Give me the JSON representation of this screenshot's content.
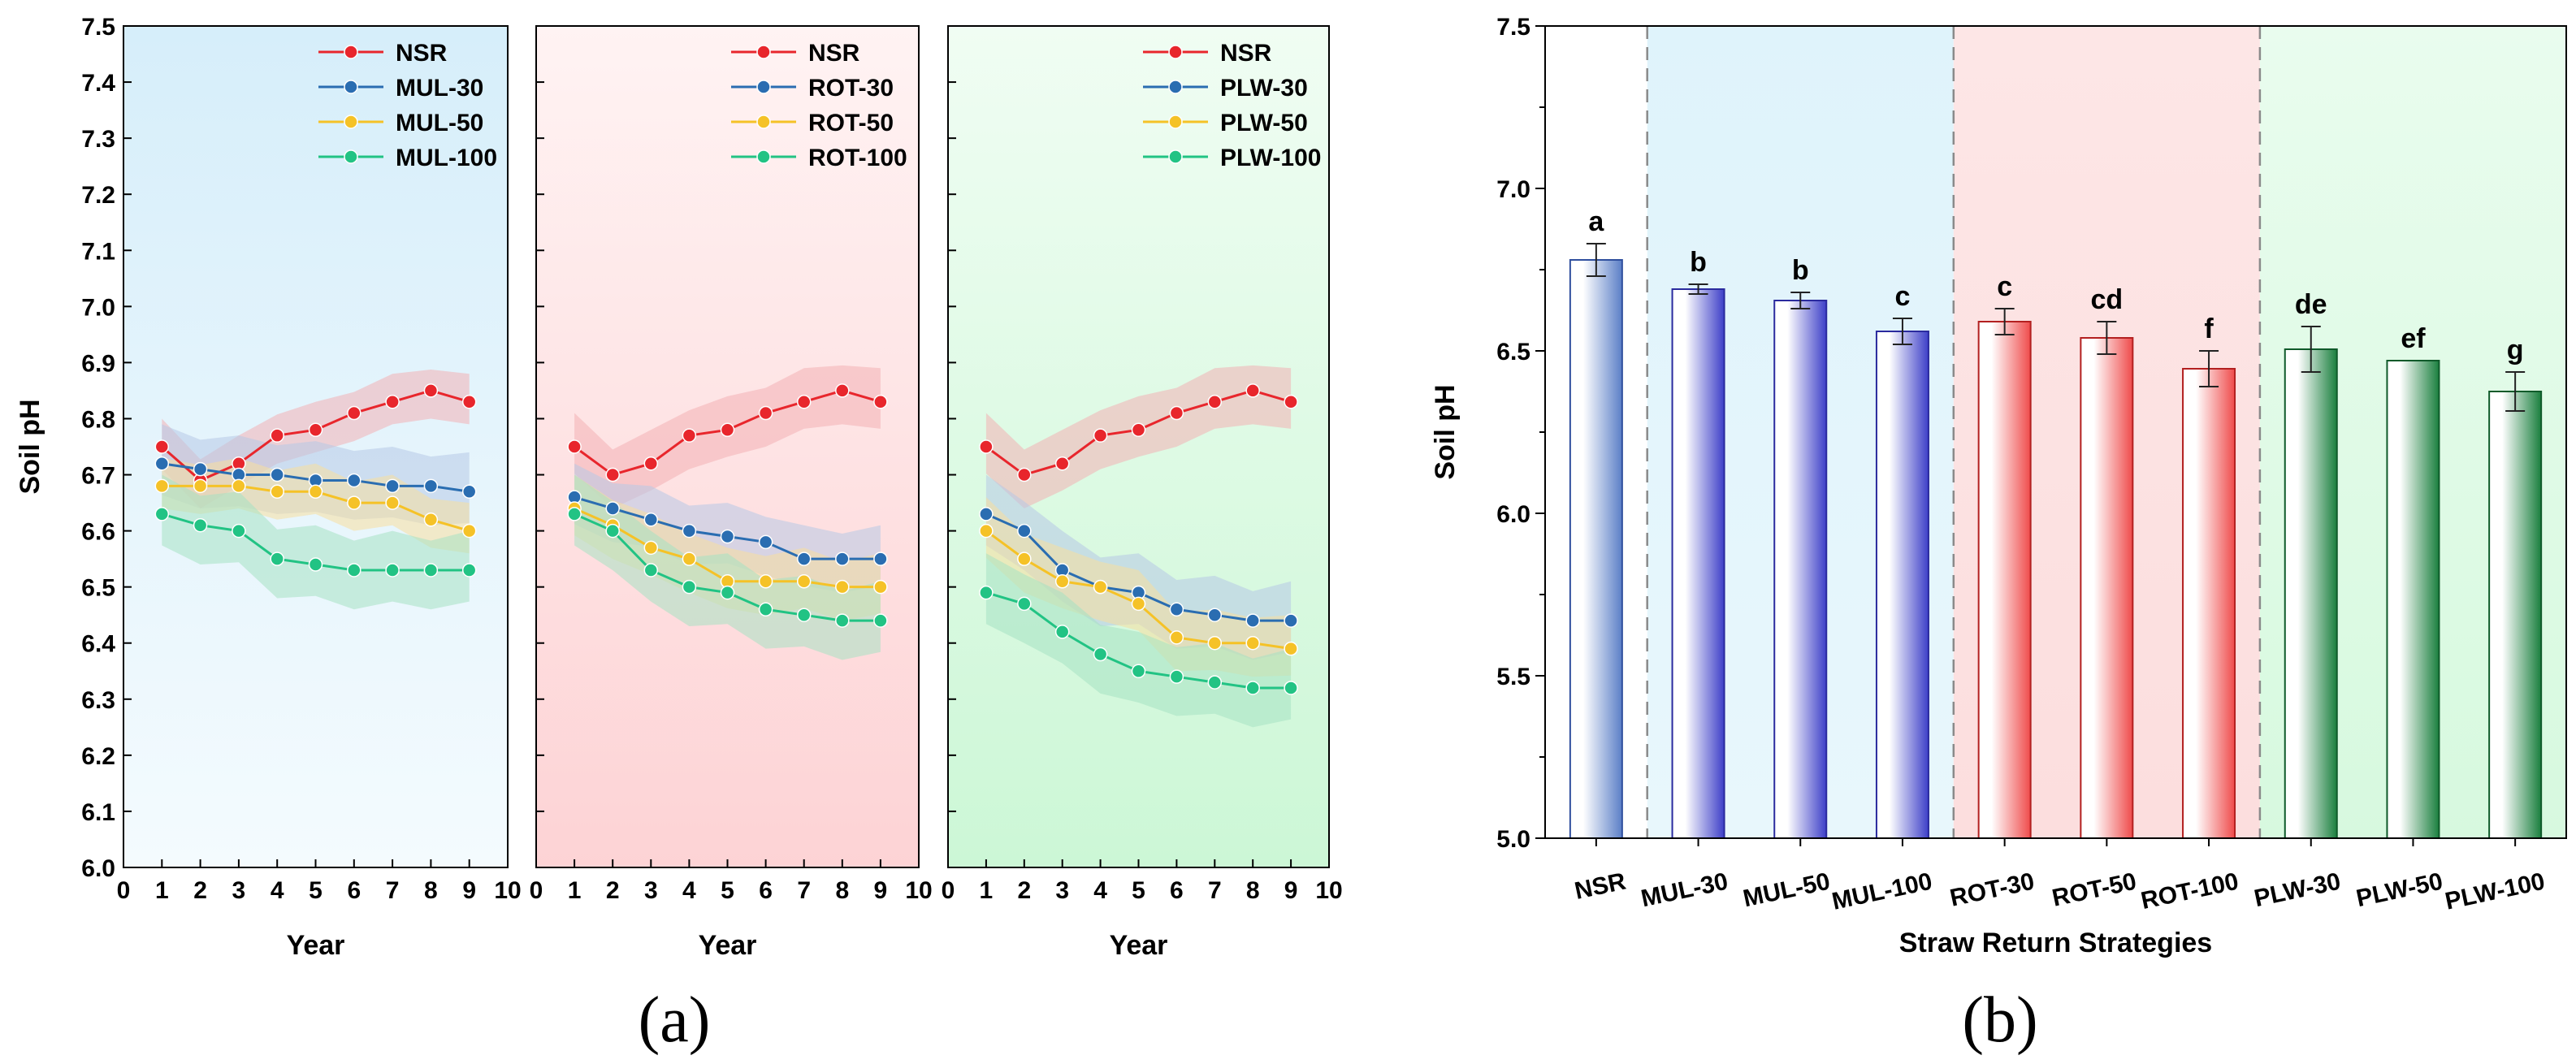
{
  "figure": {
    "panel_a_label": "(a)",
    "panel_b_label": "(b)"
  },
  "colors": {
    "NSR": "#e8262c",
    "L30": "#2a6db1",
    "L50": "#f5c227",
    "L100": "#22c384",
    "bg_mul": "#e3f3fb",
    "bg_rot": "#fde3e3",
    "bg_plw": "#dcfbe3",
    "band_nsr": "#f3b1b5",
    "band_30": "#b7c9e5",
    "band_50": "#f7df9e",
    "band_100": "#a6e2c2",
    "bar_nsr": "#5b7fc7",
    "bar_mul": "#3d3fc8",
    "bar_rot": "#ef4b4b",
    "bar_plw": "#1a7f3e"
  },
  "chart_data": [
    {
      "type": "line",
      "title": "",
      "xlabel": "Year",
      "ylabel": "Soil pH",
      "xlim": [
        0,
        10
      ],
      "ylim": [
        6.0,
        7.5
      ],
      "x": [
        1,
        2,
        3,
        4,
        5,
        6,
        7,
        8,
        9
      ],
      "legend_position": "top-right",
      "series": [
        {
          "name": "NSR",
          "values": [
            6.75,
            6.69,
            6.72,
            6.77,
            6.78,
            6.81,
            6.83,
            6.85,
            6.83
          ],
          "band": 0.05
        },
        {
          "name": "MUL-30",
          "values": [
            6.72,
            6.71,
            6.7,
            6.7,
            6.69,
            6.69,
            6.68,
            6.68,
            6.67
          ],
          "band": 0.07
        },
        {
          "name": "MUL-50",
          "values": [
            6.68,
            6.68,
            6.68,
            6.67,
            6.67,
            6.65,
            6.65,
            6.62,
            6.6
          ],
          "band": 0.05
        },
        {
          "name": "MUL-100",
          "values": [
            6.63,
            6.61,
            6.6,
            6.55,
            6.54,
            6.53,
            6.53,
            6.53,
            6.53
          ],
          "band": 0.07
        }
      ]
    },
    {
      "type": "line",
      "title": "",
      "xlabel": "Year",
      "ylabel": "",
      "xlim": [
        0,
        10
      ],
      "ylim": [
        6.0,
        7.5
      ],
      "x": [
        1,
        2,
        3,
        4,
        5,
        6,
        7,
        8,
        9
      ],
      "legend_position": "top-right",
      "series": [
        {
          "name": "NSR",
          "values": [
            6.75,
            6.7,
            6.72,
            6.77,
            6.78,
            6.81,
            6.83,
            6.85,
            6.83
          ],
          "band": 0.06
        },
        {
          "name": "ROT-30",
          "values": [
            6.66,
            6.64,
            6.62,
            6.6,
            6.59,
            6.58,
            6.55,
            6.55,
            6.55
          ],
          "band": 0.06
        },
        {
          "name": "ROT-50",
          "values": [
            6.64,
            6.61,
            6.57,
            6.55,
            6.51,
            6.51,
            6.51,
            6.5,
            6.5
          ],
          "band": 0.06
        },
        {
          "name": "ROT-100",
          "values": [
            6.63,
            6.6,
            6.53,
            6.5,
            6.49,
            6.46,
            6.45,
            6.44,
            6.44
          ],
          "band": 0.07
        }
      ]
    },
    {
      "type": "line",
      "title": "",
      "xlabel": "Year",
      "ylabel": "",
      "xlim": [
        0,
        10
      ],
      "ylim": [
        6.0,
        7.5
      ],
      "x": [
        1,
        2,
        3,
        4,
        5,
        6,
        7,
        8,
        9
      ],
      "legend_position": "top-right",
      "series": [
        {
          "name": "NSR",
          "values": [
            6.75,
            6.7,
            6.72,
            6.77,
            6.78,
            6.81,
            6.83,
            6.85,
            6.83
          ],
          "band": 0.06
        },
        {
          "name": "PLW-30",
          "values": [
            6.63,
            6.6,
            6.53,
            6.5,
            6.49,
            6.46,
            6.45,
            6.44,
            6.44
          ],
          "band": 0.07
        },
        {
          "name": "PLW-50",
          "values": [
            6.6,
            6.55,
            6.51,
            6.5,
            6.47,
            6.41,
            6.4,
            6.4,
            6.39
          ],
          "band": 0.06
        },
        {
          "name": "PLW-100",
          "values": [
            6.49,
            6.47,
            6.42,
            6.38,
            6.35,
            6.34,
            6.33,
            6.32,
            6.32
          ],
          "band": 0.07
        }
      ]
    },
    {
      "type": "bar",
      "title": "",
      "xlabel": "Straw Return Strategies",
      "ylabel": "Soil pH",
      "ylim": [
        5.0,
        7.5
      ],
      "categories": [
        "NSR",
        "MUL-30",
        "MUL-50",
        "MUL-100",
        "ROT-30",
        "ROT-50",
        "ROT-100",
        "PLW-30",
        "PLW-50",
        "PLW-100"
      ],
      "values": [
        6.78,
        6.69,
        6.655,
        6.56,
        6.59,
        6.54,
        6.445,
        6.505,
        6.47,
        6.375
      ],
      "errors": [
        0.05,
        0.015,
        0.025,
        0.04,
        0.04,
        0.05,
        0.055,
        0.07,
        0.0,
        0.06
      ],
      "significance": [
        "a",
        "b",
        "b",
        "c",
        "c",
        "cd",
        "f",
        "de",
        "ef",
        "g"
      ],
      "groups": [
        "NSR",
        "MUL",
        "MUL",
        "MUL",
        "ROT",
        "ROT",
        "ROT",
        "PLW",
        "PLW",
        "PLW"
      ]
    }
  ]
}
